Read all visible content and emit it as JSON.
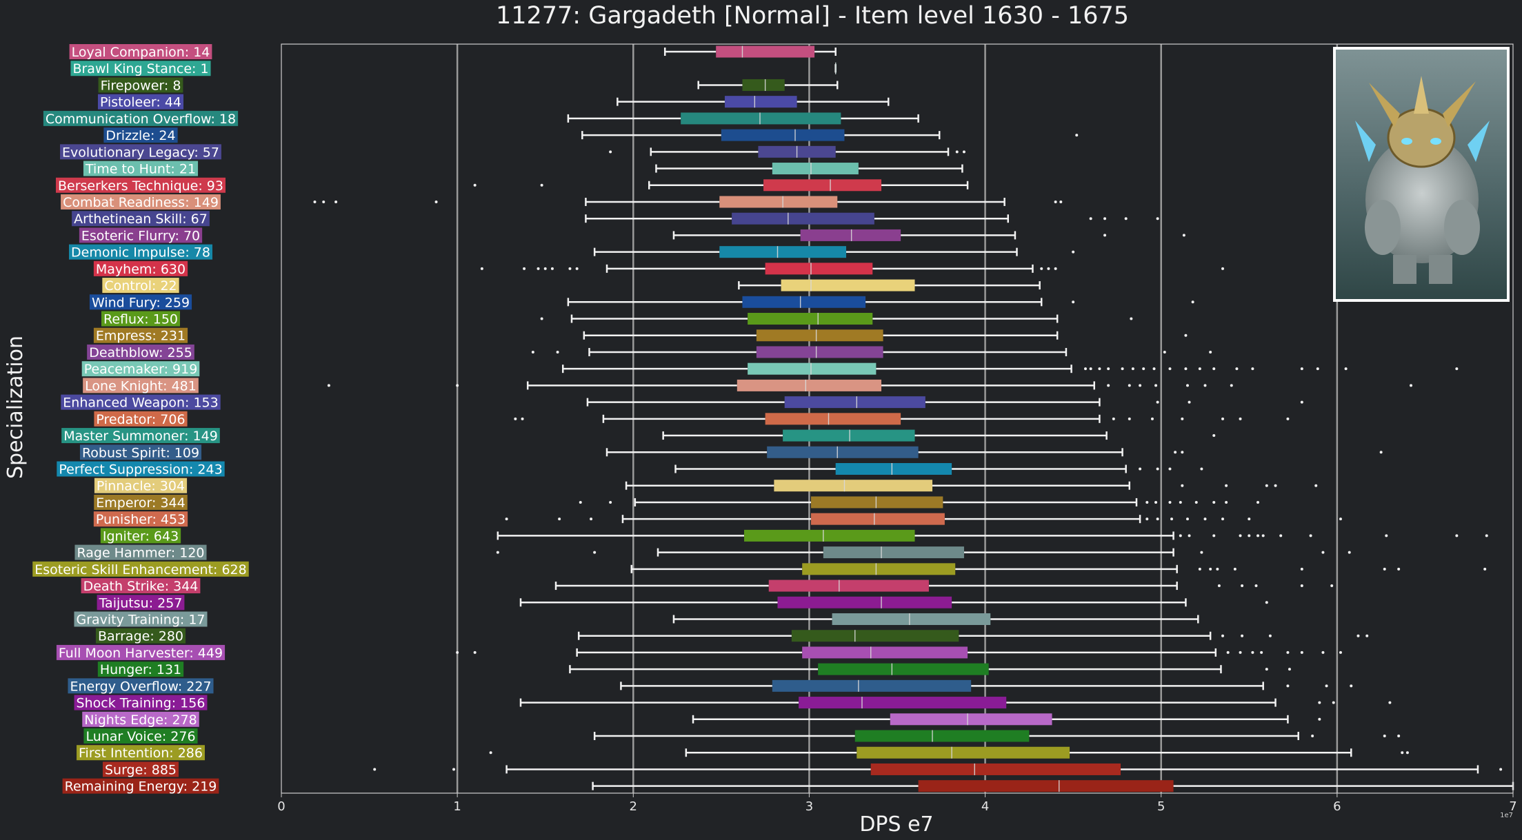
{
  "colors": {
    "background": "#212326",
    "axis": "#cfcfcf",
    "grid": "#9a9a9a",
    "whisker": "#f2f2f2"
  },
  "chart_data": {
    "type": "boxplot",
    "orientation": "horizontal",
    "title": "11277: Gargadeth [Normal] - Item level 1630 - 1675",
    "xlabel": "DPS e7",
    "ylabel": "Specialization",
    "x_offset_text": "1e7",
    "xlim": [
      0,
      7
    ],
    "xticks": [
      "0",
      "1",
      "2",
      "3",
      "4",
      "5",
      "6",
      "7"
    ],
    "grid": "vertical",
    "image": "boss-portrait",
    "series": [
      {
        "label": "Loyal Companion: 14",
        "color": "#c44f7f",
        "min": 2.18,
        "q1": 2.47,
        "median": 2.62,
        "q3": 3.03,
        "max": 3.15,
        "outliers": []
      },
      {
        "label": "Brawl King Stance: 1",
        "color": "#2ea793",
        "min": 3.15,
        "q1": 3.15,
        "median": 3.15,
        "q3": 3.15,
        "max": 3.15,
        "outliers": []
      },
      {
        "label": "Firepower: 8",
        "color": "#355a1c",
        "min": 2.37,
        "q1": 2.62,
        "median": 2.75,
        "q3": 2.86,
        "max": 3.16,
        "outliers": []
      },
      {
        "label": "Pistoleer: 44",
        "color": "#4b4aa6",
        "min": 1.91,
        "q1": 2.52,
        "median": 2.69,
        "q3": 2.93,
        "max": 3.45,
        "outliers": []
      },
      {
        "label": "Communication Overflow: 18",
        "color": "#26887e",
        "min": 1.63,
        "q1": 2.27,
        "median": 2.72,
        "q3": 3.18,
        "max": 3.62,
        "outliers": []
      },
      {
        "label": "Drizzle: 24",
        "color": "#1d4d8f",
        "min": 1.71,
        "q1": 2.5,
        "median": 2.92,
        "q3": 3.2,
        "max": 3.74,
        "outliers": [
          4.52
        ]
      },
      {
        "label": "Evolutionary Legacy: 57",
        "color": "#4b4791",
        "min": 2.1,
        "q1": 2.71,
        "median": 2.93,
        "q3": 3.15,
        "max": 3.79,
        "outliers": [
          1.87,
          3.84,
          3.88
        ]
      },
      {
        "label": "Time to Hunt: 21",
        "color": "#6cbfae",
        "min": 2.13,
        "q1": 2.79,
        "median": 3.01,
        "q3": 3.28,
        "max": 3.87,
        "outliers": []
      },
      {
        "label": "Berserkers Technique: 93",
        "color": "#cf3a4c",
        "min": 2.09,
        "q1": 2.74,
        "median": 3.12,
        "q3": 3.41,
        "max": 3.9,
        "outliers": [
          1.1,
          1.48
        ]
      },
      {
        "label": "Combat Readiness: 149",
        "color": "#d9907a",
        "min": 1.73,
        "q1": 2.49,
        "median": 2.85,
        "q3": 3.16,
        "max": 4.11,
        "outliers": [
          0.19,
          0.24,
          0.31,
          0.88,
          4.4,
          4.43
        ]
      },
      {
        "label": "Arthetinean Skill: 67",
        "color": "#46458f",
        "min": 1.73,
        "q1": 2.56,
        "median": 2.88,
        "q3": 3.37,
        "max": 4.13,
        "outliers": [
          4.6,
          4.68,
          4.8,
          4.98
        ]
      },
      {
        "label": "Esoteric Flurry: 70",
        "color": "#8a3f8f",
        "min": 2.23,
        "q1": 2.95,
        "median": 3.24,
        "q3": 3.52,
        "max": 4.17,
        "outliers": [
          4.68,
          5.13
        ]
      },
      {
        "label": "Demonic Impulse: 78",
        "color": "#1688a8",
        "min": 1.78,
        "q1": 2.49,
        "median": 2.82,
        "q3": 3.21,
        "max": 4.18,
        "outliers": [
          4.5
        ]
      },
      {
        "label": "Mayhem: 630",
        "color": "#d4334a",
        "min": 1.85,
        "q1": 2.75,
        "median": 3.01,
        "q3": 3.36,
        "max": 4.27,
        "outliers": [
          1.14,
          1.38,
          1.46,
          1.5,
          1.54,
          1.64,
          1.68,
          4.32,
          4.36,
          4.4,
          5.35
        ]
      },
      {
        "label": "Control: 22",
        "color": "#e9d27a",
        "min": 2.6,
        "q1": 2.84,
        "median": 3.01,
        "q3": 3.6,
        "max": 4.31,
        "outliers": []
      },
      {
        "label": "Wind Fury: 259",
        "color": "#1a4d9c",
        "min": 1.63,
        "q1": 2.62,
        "median": 2.95,
        "q3": 3.32,
        "max": 4.32,
        "outliers": [
          4.5,
          5.18
        ]
      },
      {
        "label": "Reflux: 150",
        "color": "#5a9a1a",
        "min": 1.65,
        "q1": 2.65,
        "median": 3.05,
        "q3": 3.36,
        "max": 4.41,
        "outliers": [
          1.48,
          4.83
        ]
      },
      {
        "label": "Empress: 231",
        "color": "#a07a24",
        "min": 1.72,
        "q1": 2.7,
        "median": 3.04,
        "q3": 3.42,
        "max": 4.41,
        "outliers": [
          5.14
        ]
      },
      {
        "label": "Deathblow: 255",
        "color": "#844496",
        "min": 1.75,
        "q1": 2.7,
        "median": 3.04,
        "q3": 3.42,
        "max": 4.46,
        "outliers": [
          1.43,
          1.57,
          5.02,
          5.28
        ]
      },
      {
        "label": "Peacemaker: 919",
        "color": "#79c8b6",
        "min": 1.6,
        "q1": 2.65,
        "median": 3.01,
        "q3": 3.38,
        "max": 4.49,
        "outliers": [
          4.57,
          4.6,
          4.65,
          4.7,
          4.78,
          4.84,
          4.9,
          4.96,
          5.05,
          5.14,
          5.22,
          5.3,
          5.43,
          5.52,
          5.8,
          5.89,
          6.05,
          6.68
        ]
      },
      {
        "label": "Lone Knight: 481",
        "color": "#d99483",
        "min": 1.4,
        "q1": 2.59,
        "median": 2.98,
        "q3": 3.41,
        "max": 4.62,
        "outliers": [
          0.27,
          1.0,
          4.7,
          4.82,
          4.88,
          4.97,
          5.15,
          5.25,
          5.4,
          6.42
        ]
      },
      {
        "label": "Enhanced Weapon: 153",
        "color": "#4c4aa0",
        "min": 1.74,
        "q1": 2.86,
        "median": 3.27,
        "q3": 3.66,
        "max": 4.65,
        "outliers": [
          4.98,
          5.16,
          5.8
        ]
      },
      {
        "label": "Predator: 706",
        "color": "#cf6a49",
        "min": 1.83,
        "q1": 2.75,
        "median": 3.11,
        "q3": 3.52,
        "max": 4.65,
        "outliers": [
          1.33,
          1.37,
          4.73,
          4.82,
          4.95,
          5.12,
          5.35,
          5.45,
          5.72
        ]
      },
      {
        "label": "Master Summoner: 149",
        "color": "#279484",
        "min": 2.17,
        "q1": 2.85,
        "median": 3.23,
        "q3": 3.6,
        "max": 4.69,
        "outliers": [
          5.3
        ]
      },
      {
        "label": "Robust Spirit: 109",
        "color": "#335d8a",
        "min": 1.85,
        "q1": 2.76,
        "median": 3.16,
        "q3": 3.62,
        "max": 4.78,
        "outliers": [
          5.08,
          5.12,
          6.25
        ]
      },
      {
        "label": "Perfect Suppression: 243",
        "color": "#1488ae",
        "min": 2.24,
        "q1": 3.15,
        "median": 3.47,
        "q3": 3.81,
        "max": 4.8,
        "outliers": [
          4.88,
          4.98,
          5.05,
          5.23
        ]
      },
      {
        "label": "Pinnacle: 304",
        "color": "#e3cc7b",
        "min": 1.96,
        "q1": 2.8,
        "median": 3.2,
        "q3": 3.7,
        "max": 4.82,
        "outliers": [
          5.12,
          5.37,
          5.6,
          5.65,
          5.88
        ]
      },
      {
        "label": "Emperor: 344",
        "color": "#9c7a26",
        "min": 2.01,
        "q1": 3.01,
        "median": 3.38,
        "q3": 3.76,
        "max": 4.86,
        "outliers": [
          1.7,
          1.87,
          4.92,
          4.97,
          5.05,
          5.11,
          5.2,
          5.3,
          5.37,
          5.55
        ]
      },
      {
        "label": "Punisher: 453",
        "color": "#cf6a4e",
        "min": 1.94,
        "q1": 3.01,
        "median": 3.37,
        "q3": 3.77,
        "max": 4.88,
        "outliers": [
          1.28,
          1.58,
          1.76,
          4.92,
          4.98,
          5.06,
          5.15,
          5.25,
          5.35,
          5.5,
          6.02
        ]
      },
      {
        "label": "Igniter: 643",
        "color": "#5a9a1a",
        "min": 1.23,
        "q1": 2.63,
        "median": 3.08,
        "q3": 3.6,
        "max": 5.07,
        "outliers": [
          5.11,
          5.16,
          5.3,
          5.45,
          5.5,
          5.55,
          5.58,
          5.68,
          5.85,
          6.28,
          6.68,
          6.85
        ]
      },
      {
        "label": "Rage Hammer: 120",
        "color": "#6e8a8a",
        "min": 2.14,
        "q1": 3.08,
        "median": 3.41,
        "q3": 3.88,
        "max": 5.07,
        "outliers": [
          1.23,
          1.78,
          5.23,
          5.92,
          6.07
        ]
      },
      {
        "label": "Esoteric Skill Enhancement: 628",
        "color": "#9c9c22",
        "min": 1.99,
        "q1": 2.96,
        "median": 3.38,
        "q3": 3.83,
        "max": 5.09,
        "outliers": [
          5.22,
          5.28,
          5.32,
          5.42,
          5.8,
          6.27,
          6.35,
          6.84
        ]
      },
      {
        "label": "Death Strike: 344",
        "color": "#c43f6c",
        "min": 1.56,
        "q1": 2.77,
        "median": 3.17,
        "q3": 3.68,
        "max": 5.09,
        "outliers": [
          5.33,
          5.46,
          5.54,
          5.8,
          5.97
        ]
      },
      {
        "label": "Taijutsu: 257",
        "color": "#8c1c92",
        "min": 1.36,
        "q1": 2.82,
        "median": 3.41,
        "q3": 3.81,
        "max": 5.14,
        "outliers": [
          5.6
        ]
      },
      {
        "label": "Gravity Training: 17",
        "color": "#7a9a9a",
        "min": 2.23,
        "q1": 3.13,
        "median": 3.57,
        "q3": 4.03,
        "max": 5.21,
        "outliers": []
      },
      {
        "label": "Barrage: 280",
        "color": "#355a1c",
        "min": 1.69,
        "q1": 2.9,
        "median": 3.26,
        "q3": 3.85,
        "max": 5.28,
        "outliers": [
          5.35,
          5.46,
          5.62,
          6.12,
          6.17
        ]
      },
      {
        "label": "Full Moon Harvester: 449",
        "color": "#a74fb2",
        "min": 1.68,
        "q1": 2.96,
        "median": 3.35,
        "q3": 3.9,
        "max": 5.31,
        "outliers": [
          1.0,
          1.1,
          5.38,
          5.45,
          5.52,
          5.57,
          5.72,
          5.8,
          5.92,
          6.02
        ]
      },
      {
        "label": "Hunger: 131",
        "color": "#1f7e23",
        "min": 1.64,
        "q1": 3.05,
        "median": 3.47,
        "q3": 4.02,
        "max": 5.34,
        "outliers": [
          5.6,
          5.73
        ]
      },
      {
        "label": "Energy Overflow: 227",
        "color": "#2f5d8c",
        "min": 1.93,
        "q1": 2.79,
        "median": 3.28,
        "q3": 3.92,
        "max": 5.58,
        "outliers": [
          5.72,
          5.94,
          6.08
        ]
      },
      {
        "label": "Shock Training: 156",
        "color": "#8a1c96",
        "min": 1.36,
        "q1": 2.94,
        "median": 3.3,
        "q3": 4.12,
        "max": 5.65,
        "outliers": [
          5.9,
          5.98,
          6.3
        ]
      },
      {
        "label": "Nights Edge: 278",
        "color": "#b869c8",
        "min": 2.34,
        "q1": 3.46,
        "median": 3.9,
        "q3": 4.38,
        "max": 5.72,
        "outliers": [
          5.9
        ]
      },
      {
        "label": "Lunar Voice: 276",
        "color": "#1f7e23",
        "min": 1.78,
        "q1": 3.26,
        "median": 3.7,
        "q3": 4.25,
        "max": 5.78,
        "outliers": [
          5.86,
          6.27,
          6.35
        ]
      },
      {
        "label": "First Intention: 286",
        "color": "#9c9c22",
        "min": 2.3,
        "q1": 3.27,
        "median": 3.81,
        "q3": 4.48,
        "max": 6.08,
        "outliers": [
          1.19,
          6.37,
          6.4
        ]
      },
      {
        "label": "Surge: 885",
        "color": "#a82a1f",
        "min": 1.28,
        "q1": 3.35,
        "median": 3.94,
        "q3": 4.77,
        "max": 6.8,
        "outliers": [
          0.53,
          0.98,
          6.93
        ]
      },
      {
        "label": "Remaining Energy: 219",
        "color": "#9a2418",
        "min": 1.77,
        "q1": 3.62,
        "median": 4.42,
        "q3": 5.07,
        "max": 7.0,
        "outliers": []
      }
    ]
  }
}
